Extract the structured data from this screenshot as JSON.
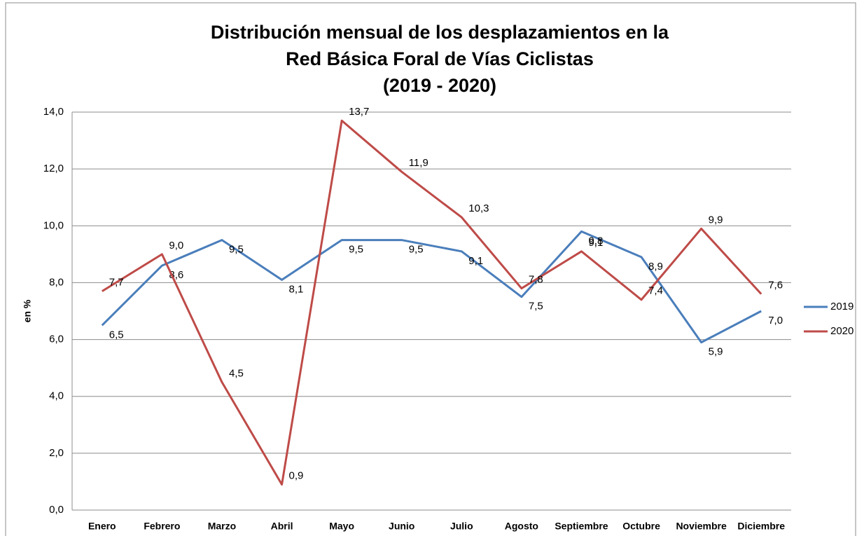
{
  "chart_data": {
    "type": "line",
    "title": [
      "Distribución mensual de los desplazamientos en la",
      "Red Básica Foral de Vías Ciclistas",
      "(2019 - 2020)"
    ],
    "y_label": "en %",
    "categories": [
      "Enero",
      "Febrero",
      "Marzo",
      "Abril",
      "Mayo",
      "Junio",
      "Julio",
      "Agosto",
      "Septiembre",
      "Octubre",
      "Noviembre",
      "Diciembre"
    ],
    "series": [
      {
        "name": "2019",
        "color": "#4a7ebb",
        "values": [
          6.5,
          8.6,
          9.5,
          8.1,
          9.5,
          9.5,
          9.1,
          7.5,
          9.8,
          8.9,
          5.9,
          7.0
        ],
        "value_labels": [
          "6,5",
          "8,6",
          "9,5",
          "8,1",
          "9,5",
          "9,5",
          "9,1",
          "7,5",
          "9,8",
          "8,9",
          "5,9",
          "7,0"
        ]
      },
      {
        "name": "2020",
        "color": "#be4b48",
        "values": [
          7.7,
          9.0,
          4.5,
          0.9,
          13.7,
          11.9,
          10.3,
          7.8,
          9.1,
          7.4,
          9.9,
          7.6
        ],
        "value_labels": [
          "7,7",
          "9,0",
          "4,5",
          "0,9",
          "13,7",
          "11,9",
          "10,3",
          "7,8",
          "9,1",
          "7,4",
          "9,9",
          "7,6"
        ]
      }
    ],
    "ylim": [
      0,
      14
    ],
    "yticks": [
      {
        "value": 0,
        "label": "0,0"
      },
      {
        "value": 2,
        "label": "2,0"
      },
      {
        "value": 4,
        "label": "4,0"
      },
      {
        "value": 6,
        "label": "6,0"
      },
      {
        "value": 8,
        "label": "8,0"
      },
      {
        "value": 10,
        "label": "10,0"
      },
      {
        "value": 12,
        "label": "12,0"
      },
      {
        "value": 14,
        "label": "14,0"
      }
    ],
    "grid": true,
    "legend": "right"
  }
}
